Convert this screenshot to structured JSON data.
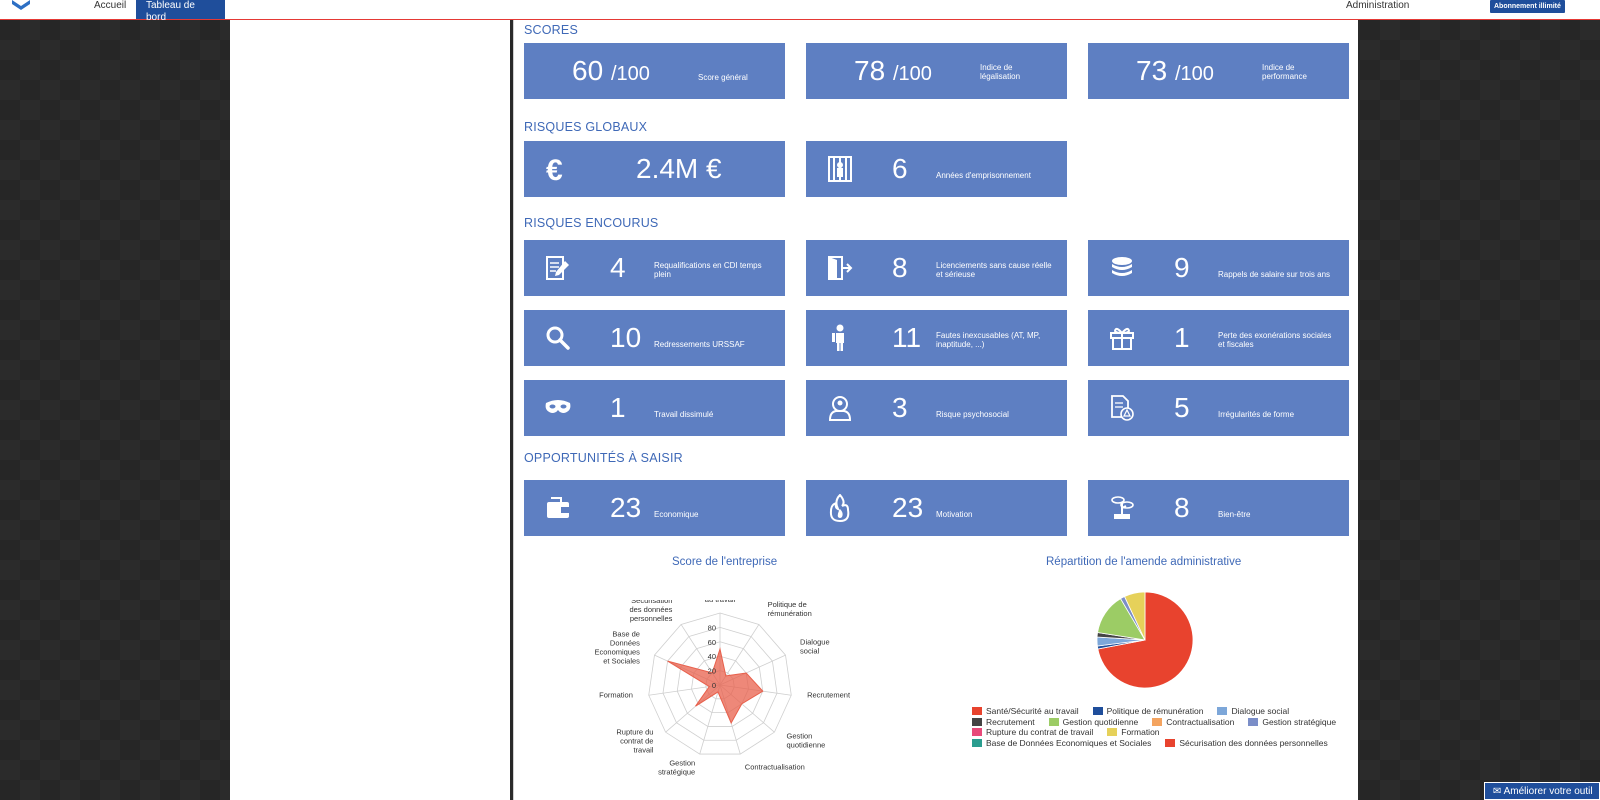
{
  "nav": {
    "accueil": "Accueil",
    "tableau": "Tableau de bord",
    "administration": "Administration",
    "abonnement": "Abonnement illimité"
  },
  "sections": {
    "scores": "SCORES",
    "risques_globaux": "RISQUES GLOBAUX",
    "risques_encourus": "RISQUES ENCOURUS",
    "opportunites": "OPPORTUNITÉS À SAISIR"
  },
  "scores": [
    {
      "value": "60",
      "unit": "/100",
      "label": "Score général"
    },
    {
      "value": "78",
      "unit": "/100",
      "label": "Indice de légalisation"
    },
    {
      "value": "73",
      "unit": "/100",
      "label": "Indice de performance"
    }
  ],
  "risques_globaux": [
    {
      "value": "2.4M €",
      "label": "",
      "icon": "euro-icon"
    },
    {
      "value": "6",
      "label": "Années d'emprisonnement",
      "icon": "prison-icon"
    }
  ],
  "risques_encourus": [
    {
      "value": "4",
      "label": "Requalifications en CDI temps plein",
      "icon": "contract-edit-icon"
    },
    {
      "value": "8",
      "label": "Licenciements sans cause réelle et sérieuse",
      "icon": "door-exit-icon"
    },
    {
      "value": "9",
      "label": "Rappels de salaire sur trois ans",
      "icon": "coins-icon"
    },
    {
      "value": "10",
      "label": "Redressements URSSAF",
      "icon": "search-icon"
    },
    {
      "value": "11",
      "label": "Fautes inexcusables (AT, MP, inaptitude, ...)",
      "icon": "injured-person-icon"
    },
    {
      "value": "1",
      "label": "Perte des exonérations sociales et fiscales",
      "icon": "gift-icon"
    },
    {
      "value": "1",
      "label": "Travail dissimulé",
      "icon": "mask-icon"
    },
    {
      "value": "3",
      "label": "Risque psychosocial",
      "icon": "head-person-icon"
    },
    {
      "value": "5",
      "label": "Irrégularités de forme",
      "icon": "document-warning-icon"
    }
  ],
  "opportunites": [
    {
      "value": "23",
      "label": "Economique",
      "icon": "wallet-icon"
    },
    {
      "value": "23",
      "label": "Motivation",
      "icon": "fire-icon"
    },
    {
      "value": "8",
      "label": "Bien-être",
      "icon": "bonsai-icon"
    }
  ],
  "charts": {
    "radar_title": "Score de l'entreprise",
    "pie_title": "Répartition de l'amende administrative"
  },
  "ameliorer": "Améliorer votre outil",
  "chart_data": [
    {
      "type": "radar",
      "title": "Score de l'entreprise",
      "categories": [
        "Santé/Sécurité au travail",
        "Politique de rémunération",
        "Dialogue social",
        "Recrutement",
        "Gestion quotidienne",
        "Contractualisation",
        "Gestion stratégique",
        "Rupture du contrat de travail",
        "Formation",
        "Base de Données Economiques et Sociales",
        "Sécurisation des données personnelles"
      ],
      "values": [
        50,
        15,
        40,
        60,
        40,
        55,
        10,
        45,
        15,
        80,
        20
      ],
      "ticks": [
        0,
        20,
        40,
        60,
        80
      ],
      "color": "#e8604c"
    },
    {
      "type": "pie",
      "title": "Répartition de l'amende administrative",
      "series": [
        {
          "name": "Santé/Sécurité au travail",
          "value": 72,
          "color": "#e8432e"
        },
        {
          "name": "Politique de rémunération",
          "value": 1,
          "color": "#1f4e9b"
        },
        {
          "name": "Dialogue social",
          "value": 3,
          "color": "#7da7d9"
        },
        {
          "name": "Recrutement",
          "value": 1.5,
          "color": "#444444"
        },
        {
          "name": "Gestion quotidienne",
          "value": 14,
          "color": "#9ccc65"
        },
        {
          "name": "Contractualisation",
          "value": 0,
          "color": "#f4a460"
        },
        {
          "name": "Gestion stratégique",
          "value": 1.5,
          "color": "#7b8ec8"
        },
        {
          "name": "Rupture du contrat de travail",
          "value": 0,
          "color": "#e84a7a"
        },
        {
          "name": "Formation",
          "value": 7,
          "color": "#e6d15a"
        },
        {
          "name": "Base de Données Economiques et Sociales",
          "value": 0,
          "color": "#2a9d8f"
        },
        {
          "name": "Sécurisation des données personnelles",
          "value": 0,
          "color": "#e8432e"
        }
      ]
    }
  ]
}
